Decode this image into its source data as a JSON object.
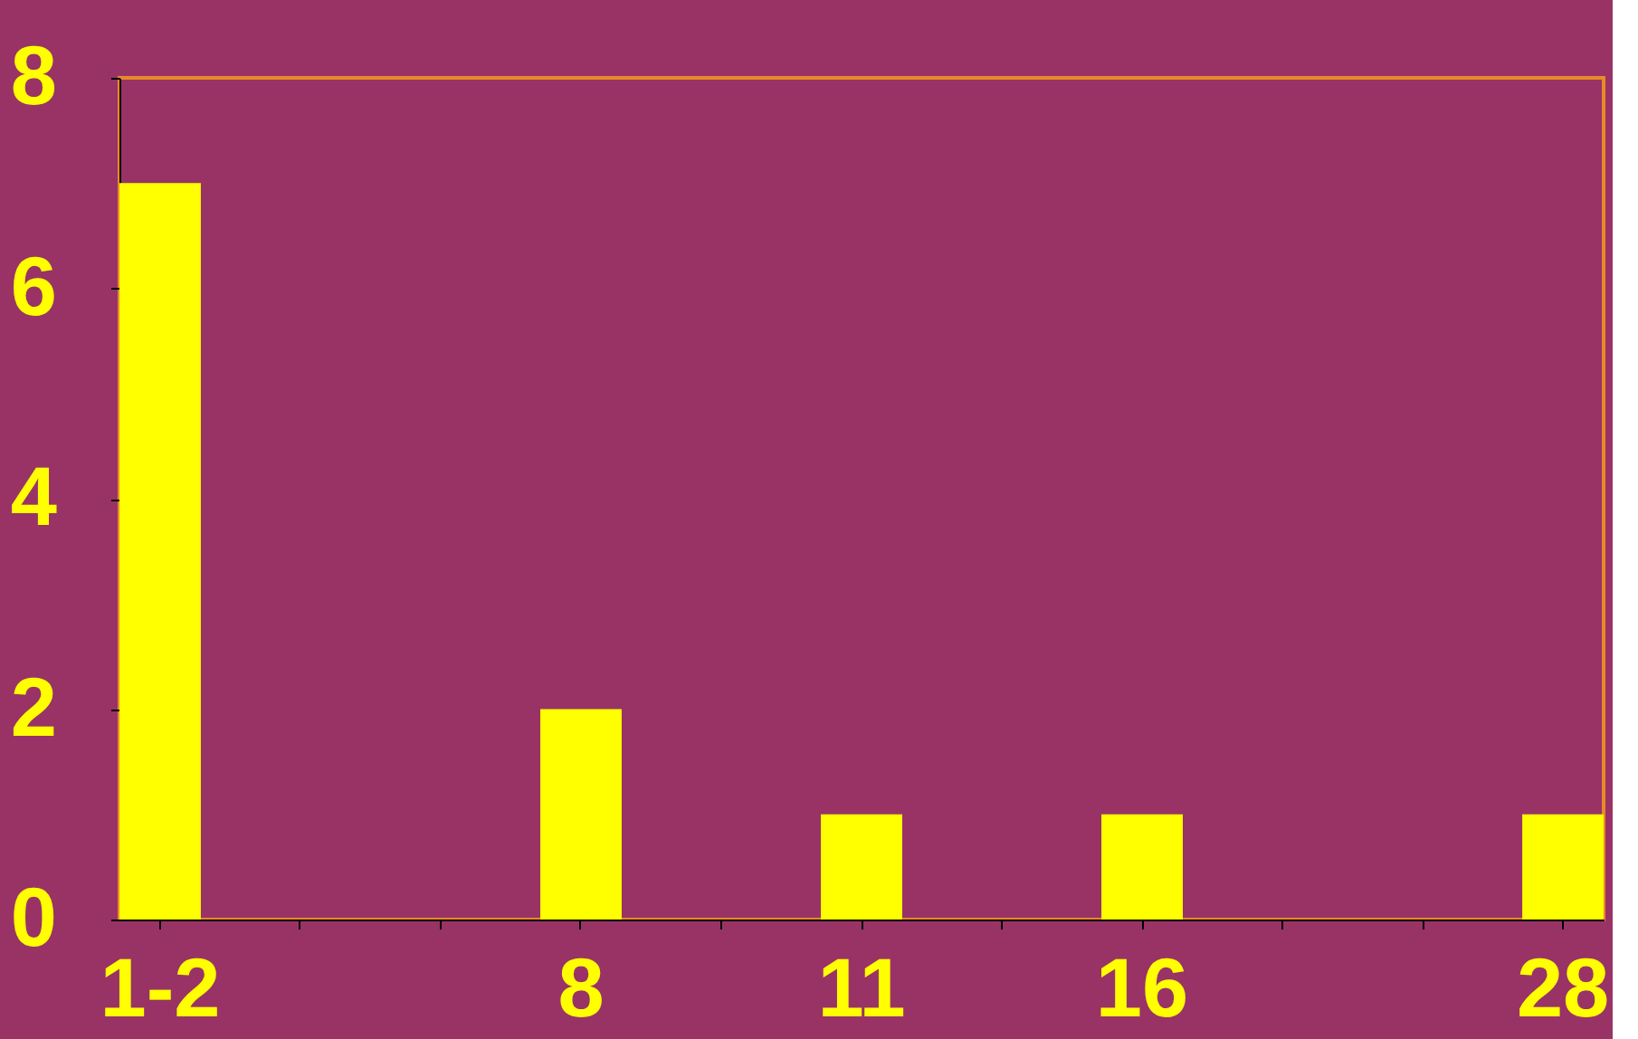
{
  "chart_data": {
    "type": "bar",
    "categories": [
      "1-2",
      null,
      null,
      "8",
      null,
      "11",
      null,
      "16",
      null,
      null,
      "28"
    ],
    "values": [
      7,
      0,
      0,
      2,
      0,
      1,
      0,
      1,
      0,
      0,
      1
    ],
    "color": "#ffff00",
    "ylim": [
      0,
      8
    ],
    "yticks": [
      0,
      2,
      4,
      6,
      8
    ],
    "grid": false
  }
}
